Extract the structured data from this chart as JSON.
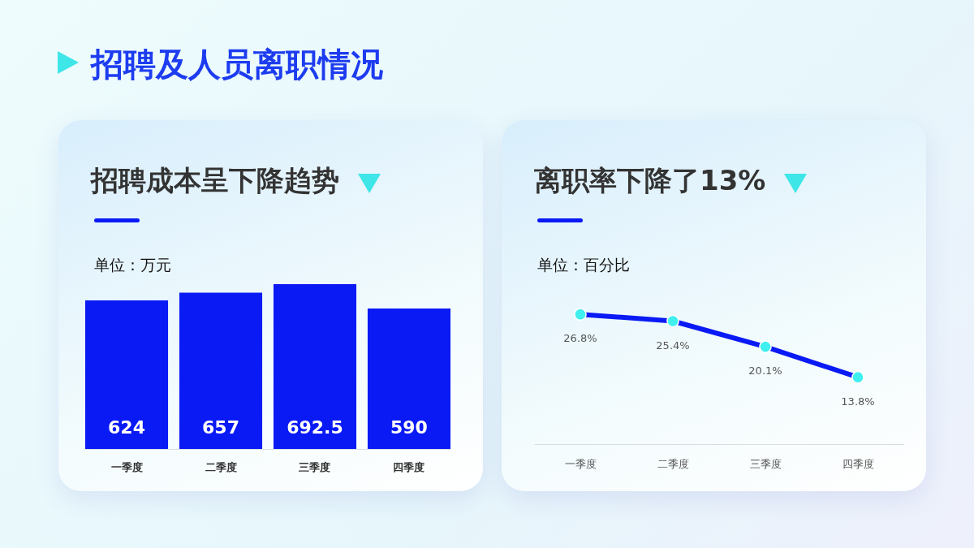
{
  "chart_data": [
    {
      "type": "other",
      "title": "招聘及人员离职情况"
    },
    {
      "type": "bar",
      "title": "招聘成本呈下降趋势",
      "subtitle": "单位：万元",
      "categories": [
        "一季度",
        "二季度",
        "三季度",
        "四季度"
      ],
      "values": [
        624,
        657,
        692.5,
        590
      ],
      "color": "#0a1af5",
      "data_labels": true,
      "tick_labels": "x"
    },
    {
      "type": "line",
      "title": "离职率下降了13%",
      "subtitle": "单位：百分比",
      "categories": [
        "一季度",
        "二季度",
        "三季度",
        "四季度"
      ],
      "series": [
        {
          "color": "#0a1af5",
          "values": [
            26.8,
            25.4,
            20.1,
            13.8
          ],
          "value_labels": [
            "26.8%",
            "25.4%",
            "20.1%",
            "13.8%"
          ]
        }
      ],
      "marker": "circle",
      "line_style": "solid",
      "tick_labels": "x"
    }
  ]
}
